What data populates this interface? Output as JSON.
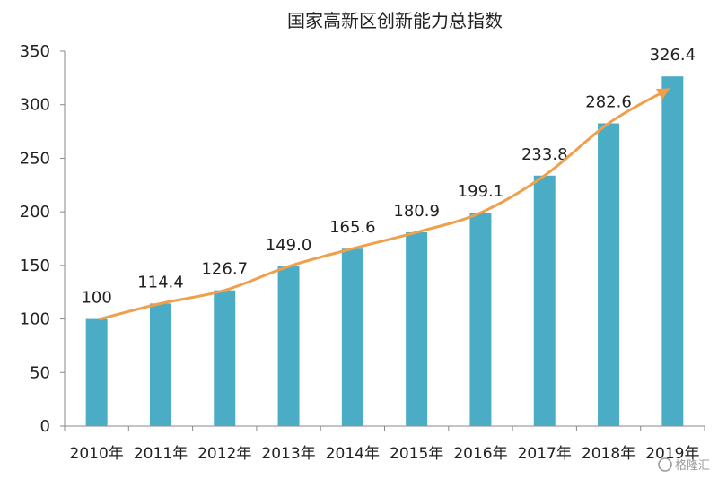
{
  "chart_data": {
    "type": "bar",
    "title": "国家高新区创新能力总指数",
    "xlabel": "",
    "ylabel": "",
    "categories": [
      "2010年",
      "2011年",
      "2012年",
      "2013年",
      "2014年",
      "2015年",
      "2016年",
      "2017年",
      "2018年",
      "2019年"
    ],
    "values": [
      100,
      114.4,
      126.7,
      149.0,
      165.6,
      180.9,
      199.1,
      233.8,
      282.6,
      326.4
    ],
    "data_labels": [
      "100",
      "114.4",
      "126.7",
      "149.0",
      "165.6",
      "180.9",
      "199.1",
      "233.8",
      "282.6",
      "326.4"
    ],
    "ylim": [
      0,
      350
    ],
    "yticks": [
      "0",
      "50",
      "100",
      "150",
      "200",
      "250",
      "300",
      "350"
    ],
    "grid": false,
    "legend": "none",
    "trend_arrow": true,
    "colors": {
      "bar": "#4BACC6",
      "trend": "#F0A04B",
      "axis": "#888888"
    }
  },
  "watermark": "格隆汇"
}
